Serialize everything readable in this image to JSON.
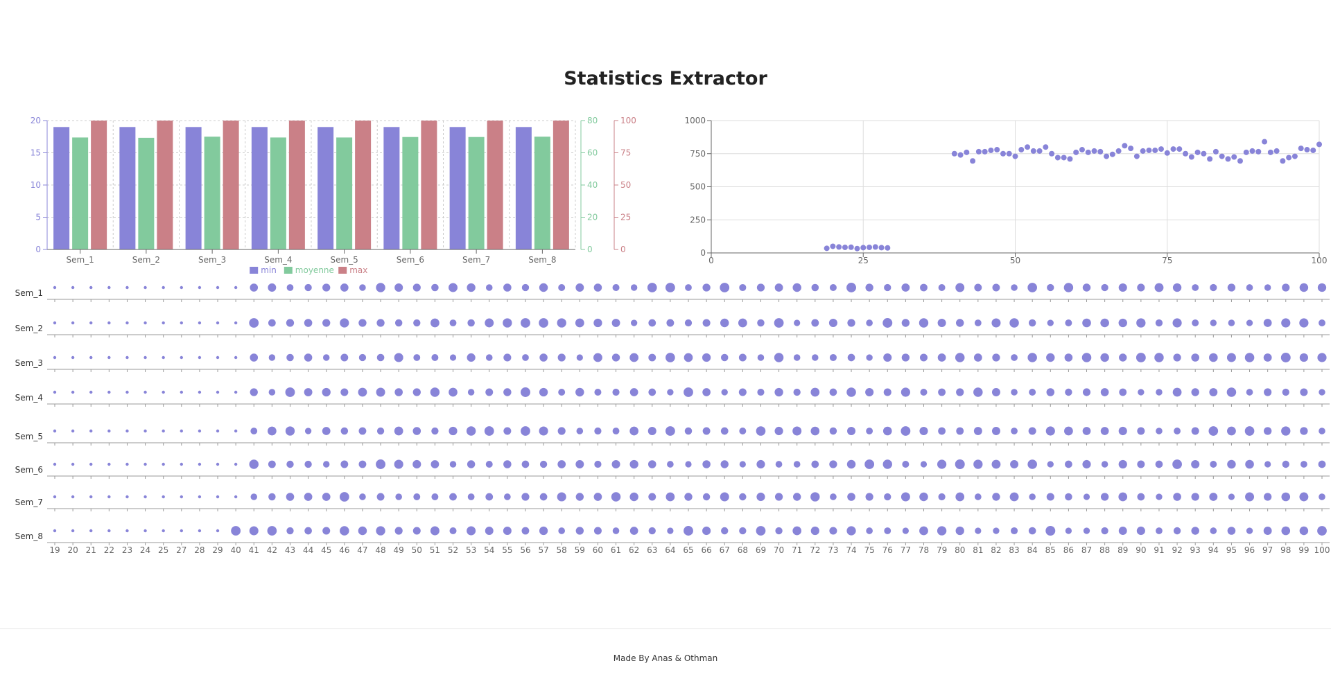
{
  "page": {
    "title": "Statistics Extractor",
    "footer": "Made By Anas & Othman"
  },
  "colors": {
    "min": "#8884d8",
    "moyenne": "#82ca9d",
    "max": "#ca8087",
    "dots": "#8884d8",
    "grid": "#cccccc",
    "axis": "#666666"
  },
  "chart_data": [
    {
      "type": "bar",
      "categories": [
        "Sem_1",
        "Sem_2",
        "Sem_3",
        "Sem_4",
        "Sem_5",
        "Sem_6",
        "Sem_7",
        "Sem_8"
      ],
      "series": [
        {
          "name": "min",
          "axis": "left",
          "values": [
            19,
            19,
            19,
            19,
            19,
            19,
            19,
            19
          ]
        },
        {
          "name": "moyenne",
          "axis": "middle",
          "values": [
            69.5,
            69.3,
            70.0,
            69.5,
            69.5,
            69.8,
            69.8,
            70.0
          ]
        },
        {
          "name": "max",
          "axis": "right",
          "values": [
            100,
            100,
            100,
            100,
            100,
            100,
            100,
            100
          ]
        }
      ],
      "y_axes": {
        "left": {
          "ticks": [
            "0",
            "5",
            "10",
            "15",
            "20"
          ],
          "ylim": [
            0,
            20
          ]
        },
        "middle": {
          "ticks": [
            "0",
            "20",
            "40",
            "60",
            "80"
          ],
          "ylim": [
            0,
            80
          ]
        },
        "right": {
          "ticks": [
            "0",
            "25",
            "50",
            "75",
            "100"
          ],
          "ylim": [
            0,
            100
          ]
        }
      },
      "grid": true,
      "legend": "bottom-center"
    },
    {
      "type": "scatter",
      "x_ticks": [
        "0",
        "25",
        "50",
        "75",
        "100"
      ],
      "y_ticks": [
        "0",
        "250",
        "500",
        "750",
        "1000"
      ],
      "xlim": [
        0,
        100
      ],
      "ylim": [
        0,
        1000
      ],
      "grid": true,
      "points": [
        [
          19,
          35
        ],
        [
          20,
          50
        ],
        [
          21,
          45
        ],
        [
          22,
          42
        ],
        [
          23,
          43
        ],
        [
          24,
          33
        ],
        [
          25,
          40
        ],
        [
          26,
          42
        ],
        [
          27,
          45
        ],
        [
          28,
          40
        ],
        [
          29,
          38
        ],
        [
          40,
          750
        ],
        [
          41,
          740
        ],
        [
          42,
          760
        ],
        [
          43,
          695
        ],
        [
          44,
          765
        ],
        [
          45,
          765
        ],
        [
          46,
          775
        ],
        [
          47,
          780
        ],
        [
          48,
          750
        ],
        [
          49,
          750
        ],
        [
          50,
          730
        ],
        [
          51,
          780
        ],
        [
          52,
          800
        ],
        [
          53,
          770
        ],
        [
          54,
          770
        ],
        [
          55,
          800
        ],
        [
          56,
          750
        ],
        [
          57,
          720
        ],
        [
          58,
          720
        ],
        [
          59,
          710
        ],
        [
          60,
          760
        ],
        [
          61,
          780
        ],
        [
          62,
          760
        ],
        [
          63,
          770
        ],
        [
          64,
          765
        ],
        [
          65,
          730
        ],
        [
          66,
          745
        ],
        [
          67,
          770
        ],
        [
          68,
          810
        ],
        [
          69,
          790
        ],
        [
          70,
          730
        ],
        [
          71,
          770
        ],
        [
          72,
          775
        ],
        [
          73,
          775
        ],
        [
          74,
          785
        ],
        [
          75,
          755
        ],
        [
          76,
          785
        ],
        [
          77,
          785
        ],
        [
          78,
          750
        ],
        [
          79,
          725
        ],
        [
          80,
          760
        ],
        [
          81,
          750
        ],
        [
          82,
          710
        ],
        [
          83,
          765
        ],
        [
          84,
          730
        ],
        [
          85,
          710
        ],
        [
          86,
          725
        ],
        [
          87,
          695
        ],
        [
          88,
          760
        ],
        [
          89,
          770
        ],
        [
          90,
          765
        ],
        [
          91,
          840
        ],
        [
          92,
          760
        ],
        [
          93,
          770
        ],
        [
          94,
          695
        ],
        [
          95,
          720
        ],
        [
          96,
          730
        ],
        [
          97,
          790
        ],
        [
          98,
          780
        ],
        [
          99,
          775
        ],
        [
          100,
          820
        ]
      ]
    },
    {
      "type": "scatter",
      "rows": [
        "Sem_1",
        "Sem_2",
        "Sem_3",
        "Sem_4",
        "Sem_5",
        "Sem_6",
        "Sem_7",
        "Sem_8"
      ],
      "x_ticks": [
        "19",
        "20",
        "21",
        "22",
        "23",
        "24",
        "25",
        "27",
        "28",
        "29",
        "40",
        "41",
        "42",
        "43",
        "44",
        "45",
        "46",
        "47",
        "48",
        "49",
        "50",
        "51",
        "52",
        "53",
        "54",
        "55",
        "56",
        "57",
        "58",
        "59",
        "60",
        "61",
        "62",
        "63",
        "64",
        "65",
        "66",
        "67",
        "68",
        "69",
        "70",
        "71",
        "72",
        "73",
        "74",
        "75",
        "76",
        "77",
        "78",
        "79",
        "80",
        "81",
        "82",
        "83",
        "84",
        "85",
        "86",
        "87",
        "88",
        "89",
        "90",
        "91",
        "92",
        "93",
        "94",
        "95",
        "96",
        "97",
        "98",
        "99",
        "100"
      ]
    }
  ]
}
